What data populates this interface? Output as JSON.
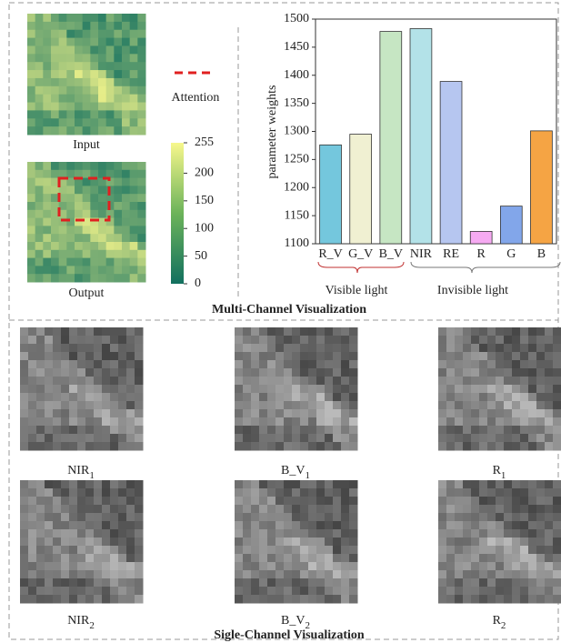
{
  "chart_data": {
    "type": "bar",
    "ylabel": "parameter weights",
    "categories": [
      "R_V",
      "G_V",
      "B_V",
      "NIR",
      "RE",
      "R",
      "G",
      "B"
    ],
    "values": [
      1276,
      1295,
      1478,
      1483,
      1389,
      1122,
      1167,
      1301
    ],
    "colors": [
      "#74c7dd",
      "#f0f0d2",
      "#c6e6c3",
      "#b3e2e8",
      "#b6c6f0",
      "#f6aaf2",
      "#82a6ea",
      "#f5a444"
    ],
    "ylim": [
      1100,
      1500
    ],
    "yticks": [
      1100,
      1150,
      1200,
      1250,
      1300,
      1350,
      1400,
      1450,
      1500
    ],
    "grid": false,
    "groups": [
      "Visible light",
      "Invisible light"
    ]
  },
  "multi": {
    "title": "Multi-Channel Visualization",
    "input": "Input",
    "output": "Output",
    "attention": "Attention",
    "colorbar": {
      "lim": [
        0,
        255
      ],
      "ticks": [
        0,
        50,
        100,
        150,
        200,
        255
      ]
    }
  },
  "single": {
    "title": "Sigle-Channel Visualization",
    "labels": [
      {
        "base": "NIR",
        "sub": "1"
      },
      {
        "base": "B_V",
        "sub": "1"
      },
      {
        "base": "R",
        "sub": "1"
      },
      {
        "base": "NIR",
        "sub": "2"
      },
      {
        "base": "B_V",
        "sub": "2"
      },
      {
        "base": "R",
        "sub": "2"
      }
    ]
  }
}
